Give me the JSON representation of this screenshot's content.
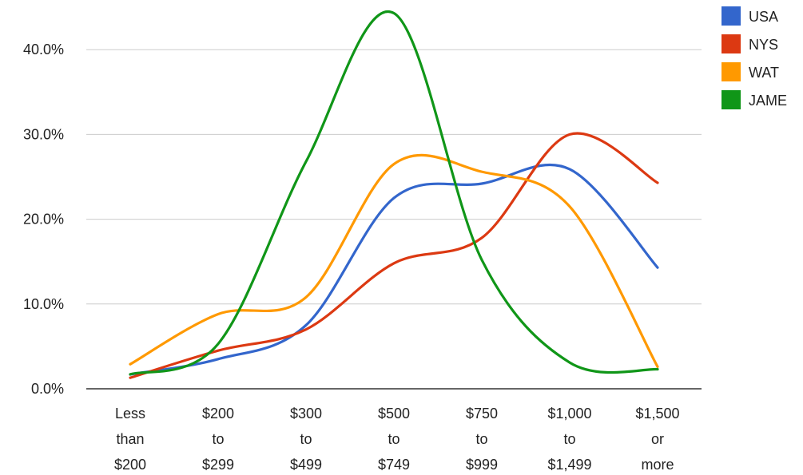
{
  "chart_data": {
    "type": "line",
    "title": "",
    "xlabel": "",
    "ylabel": "",
    "categories": [
      [
        "Less",
        "than",
        "$200"
      ],
      [
        "$200",
        "to",
        "$299"
      ],
      [
        "$300",
        "to",
        "$499"
      ],
      [
        "$500",
        "to",
        "$749"
      ],
      [
        "$750",
        "to",
        "$999"
      ],
      [
        "$1,000",
        "to",
        "$1,499"
      ],
      [
        "$1,500",
        "or",
        "more"
      ]
    ],
    "y_ticks": [
      {
        "value": 0,
        "label": "0.0%"
      },
      {
        "value": 10,
        "label": "10.0%"
      },
      {
        "value": 20,
        "label": "20.0%"
      },
      {
        "value": 30,
        "label": "30.0%"
      },
      {
        "value": 40,
        "label": "40.0%"
      }
    ],
    "ylim": [
      0,
      40
    ],
    "grid": true,
    "smooth": true,
    "legend_position": "right",
    "series": [
      {
        "name": "USA",
        "color": "#3366cc",
        "values": [
          1.7,
          3.5,
          7.5,
          22.5,
          24.2,
          25.9,
          14.3
        ]
      },
      {
        "name": "NYS",
        "color": "#dc3912",
        "values": [
          1.3,
          4.5,
          7.0,
          14.8,
          17.8,
          30.0,
          24.3
        ]
      },
      {
        "name": "WAT",
        "color": "#ff9900",
        "values": [
          2.9,
          8.8,
          10.8,
          26.5,
          25.6,
          21.5,
          2.6
        ]
      },
      {
        "name": "JAME",
        "color": "#109618",
        "values": [
          1.7,
          5.3,
          26.8,
          44.3,
          15.2,
          3.1,
          2.3
        ]
      }
    ]
  }
}
